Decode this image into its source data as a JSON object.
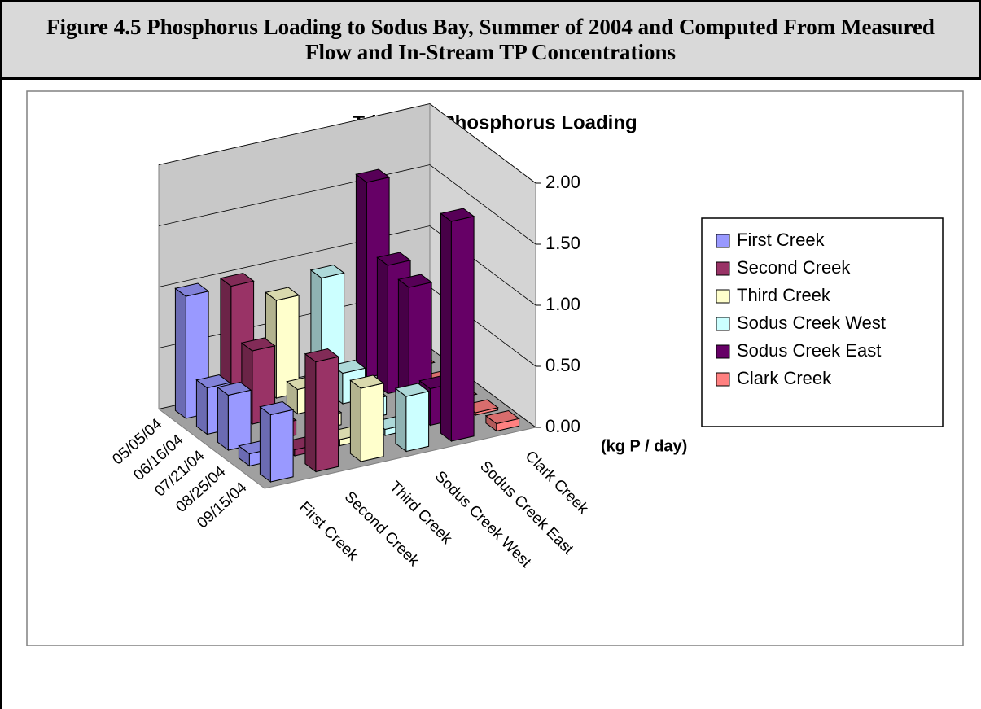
{
  "header": {
    "title": "Figure 4.5 Phosphorus Loading to Sodus Bay, Summer of 2004 and Computed From Measured Flow and In-Stream TP Concentrations"
  },
  "chart_data": {
    "type": "bar3d",
    "title": "Tributary Phosphorus Loading",
    "y_label": "(kg P / day)",
    "categories": [
      "05/05/04",
      "06/16/04",
      "07/21/04",
      "08/25/04",
      "09/15/04"
    ],
    "series": [
      {
        "name": "First Creek",
        "color": "#9999ff",
        "values": [
          1.0,
          0.38,
          0.45,
          0.1,
          0.55
        ]
      },
      {
        "name": "Second Creek",
        "color": "#993366",
        "values": [
          1.0,
          0.6,
          0.12,
          0.05,
          0.9
        ]
      },
      {
        "name": "Third Creek",
        "color": "#ffffcc",
        "values": [
          0.8,
          0.2,
          0.1,
          0.05,
          0.6
        ]
      },
      {
        "name": "Sodus Creek West",
        "color": "#ccffff",
        "values": [
          0.9,
          0.25,
          0.15,
          0.05,
          0.45
        ]
      },
      {
        "name": "Sodus Creek East",
        "color": "#660066",
        "values": [
          1.6,
          1.05,
          1.0,
          0.3,
          1.8
        ]
      },
      {
        "name": "Clark Creek",
        "color": "#ff8080",
        "values": [
          0,
          0,
          0,
          0.02,
          0.06
        ]
      }
    ],
    "ylim": [
      0,
      2
    ],
    "yticks": [
      {
        "value": 0,
        "label": "0.00"
      },
      {
        "value": 0.5,
        "label": "0.50"
      },
      {
        "value": 1,
        "label": "1.00"
      },
      {
        "value": 1.5,
        "label": "1.50"
      },
      {
        "value": 2,
        "label": "2.00"
      }
    ],
    "grid": true
  }
}
